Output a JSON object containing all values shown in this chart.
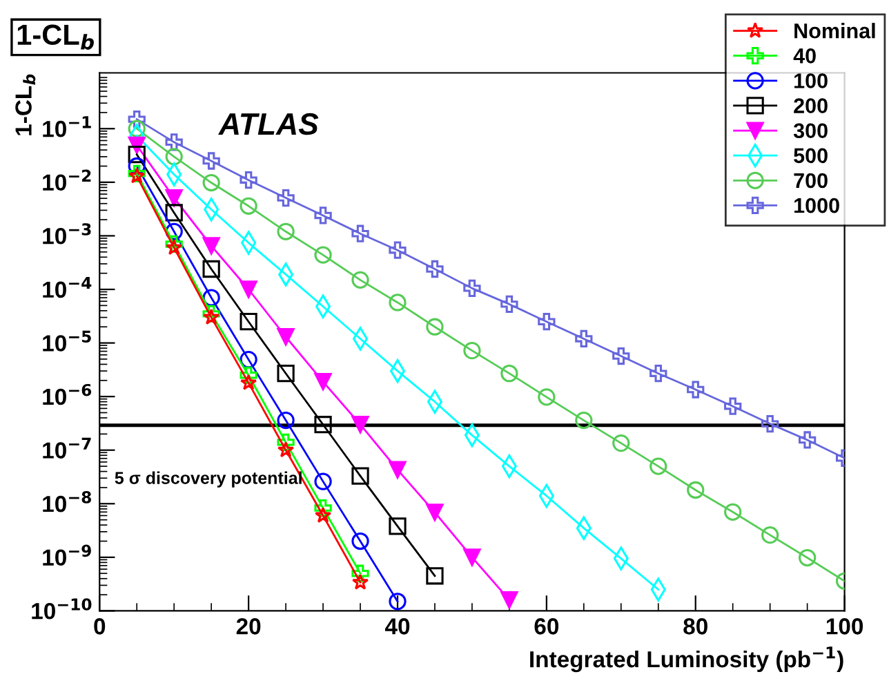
{
  "chart_data": {
    "type": "line",
    "title": "1-CL$_{b}$",
    "xlabel": "Integrated Luminosity (pb$^{−1}$)",
    "ylabel": "1-CL$_{b}$",
    "annotations": [
      "ATLAS"
    ],
    "log": "y",
    "xlim": [
      0,
      100
    ],
    "ylim": [
      1e-10,
      1.1
    ],
    "xticks": [
      0,
      20,
      40,
      60,
      80,
      100
    ],
    "yticks": [
      {
        "value": 1e-10,
        "label": "10$^{−10}$"
      },
      {
        "value": 1e-09,
        "label": "10$^{−9}$"
      },
      {
        "value": 1e-08,
        "label": "10$^{−8}$"
      },
      {
        "value": 1e-07,
        "label": "10$^{−7}$"
      },
      {
        "value": 1e-06,
        "label": "10$^{−6}$"
      },
      {
        "value": 1e-05,
        "label": "10$^{−5}$"
      },
      {
        "value": 0.0001,
        "label": "10$^{−4}$"
      },
      {
        "value": 0.001,
        "label": "10$^{−3}$"
      },
      {
        "value": 0.01,
        "label": "10$^{−2}$"
      },
      {
        "value": 0.1,
        "label": "10$^{−1}$"
      }
    ],
    "grid": false,
    "legend": "top right",
    "line_style": "solid",
    "ref_lines": [
      {
        "axis": "y",
        "value": 2.9e-07,
        "color": "#000000",
        "label": "5 σ discovery potential"
      }
    ],
    "series": [
      {
        "name": "Nominal",
        "color": "#ff0000",
        "marker": "star",
        "x": [
          5,
          10,
          15,
          20,
          25,
          30,
          35
        ],
        "values": [
          0.013,
          0.0006,
          3e-05,
          1.8e-06,
          1e-07,
          6e-09,
          3.4e-10
        ]
      },
      {
        "name": "40",
        "color": "#00ff00",
        "marker": "cross",
        "x": [
          5,
          10,
          15,
          20,
          25,
          30,
          35
        ],
        "values": [
          0.0145,
          0.0007,
          3.5e-05,
          2.5e-06,
          1.4e-07,
          8.3e-09,
          5e-10
        ]
      },
      {
        "name": "100",
        "color": "#0000ff",
        "marker": "circle",
        "x": [
          5,
          10,
          15,
          20,
          25,
          30,
          35,
          40
        ],
        "values": [
          0.02,
          0.0012,
          7e-05,
          4.9e-06,
          3.6e-07,
          2.6e-08,
          2e-09,
          1.5e-10
        ]
      },
      {
        "name": "200",
        "color": "#000000",
        "marker": "square",
        "x": [
          5,
          10,
          15,
          20,
          25,
          30,
          35,
          40,
          45
        ],
        "values": [
          0.033,
          0.0027,
          0.00024,
          2.5e-05,
          2.7e-06,
          3e-07,
          3.3e-08,
          3.8e-09,
          4.5e-10
        ]
      },
      {
        "name": "300",
        "color": "#ff00ff",
        "marker": "triangle",
        "x": [
          5,
          10,
          15,
          20,
          25,
          30,
          35,
          40,
          45,
          50,
          55
        ],
        "values": [
          0.049,
          0.0051,
          0.00065,
          0.0001,
          1.3e-05,
          1.9e-06,
          3e-07,
          4.3e-08,
          6.9e-09,
          1e-09,
          1.6e-10
        ]
      },
      {
        "name": "500",
        "color": "#00ffff",
        "marker": "diamond",
        "x": [
          5,
          10,
          15,
          20,
          25,
          30,
          35,
          40,
          45,
          50,
          55,
          60,
          65,
          70,
          75
        ],
        "values": [
          0.074,
          0.014,
          0.0031,
          0.00074,
          0.00019,
          4.8e-05,
          1.2e-05,
          3e-06,
          8e-07,
          1.9e-07,
          5e-08,
          1.4e-08,
          3.5e-09,
          9.5e-10,
          2.5e-10
        ]
      },
      {
        "name": "700",
        "color": "#55cc55",
        "marker": "circle",
        "x": [
          5,
          10,
          15,
          20,
          25,
          30,
          35,
          40,
          45,
          50,
          55,
          60,
          65,
          70,
          75,
          80,
          85,
          90,
          95,
          100
        ],
        "values": [
          0.1,
          0.03,
          0.0098,
          0.0036,
          0.0012,
          0.00044,
          0.00015,
          5.7e-05,
          2e-05,
          7.2e-06,
          2.7e-06,
          9.8e-07,
          3.6e-07,
          1.35e-07,
          5e-08,
          1.8e-08,
          7e-09,
          2.6e-09,
          9.8e-10,
          3.6e-10
        ]
      },
      {
        "name": "1000",
        "color": "#6666dd",
        "marker": "cross",
        "x": [
          5,
          10,
          15,
          20,
          25,
          30,
          35,
          40,
          45,
          50,
          55,
          60,
          65,
          70,
          75,
          80,
          85,
          90,
          95,
          100
        ],
        "values": [
          0.15,
          0.056,
          0.025,
          0.011,
          0.0051,
          0.0024,
          0.0011,
          0.00054,
          0.00024,
          0.000105,
          5.3e-05,
          2.5e-05,
          1.2e-05,
          5.7e-06,
          2.7e-06,
          1.35e-06,
          6.6e-07,
          3.1e-07,
          1.55e-07,
          7.1e-08
        ]
      }
    ]
  }
}
